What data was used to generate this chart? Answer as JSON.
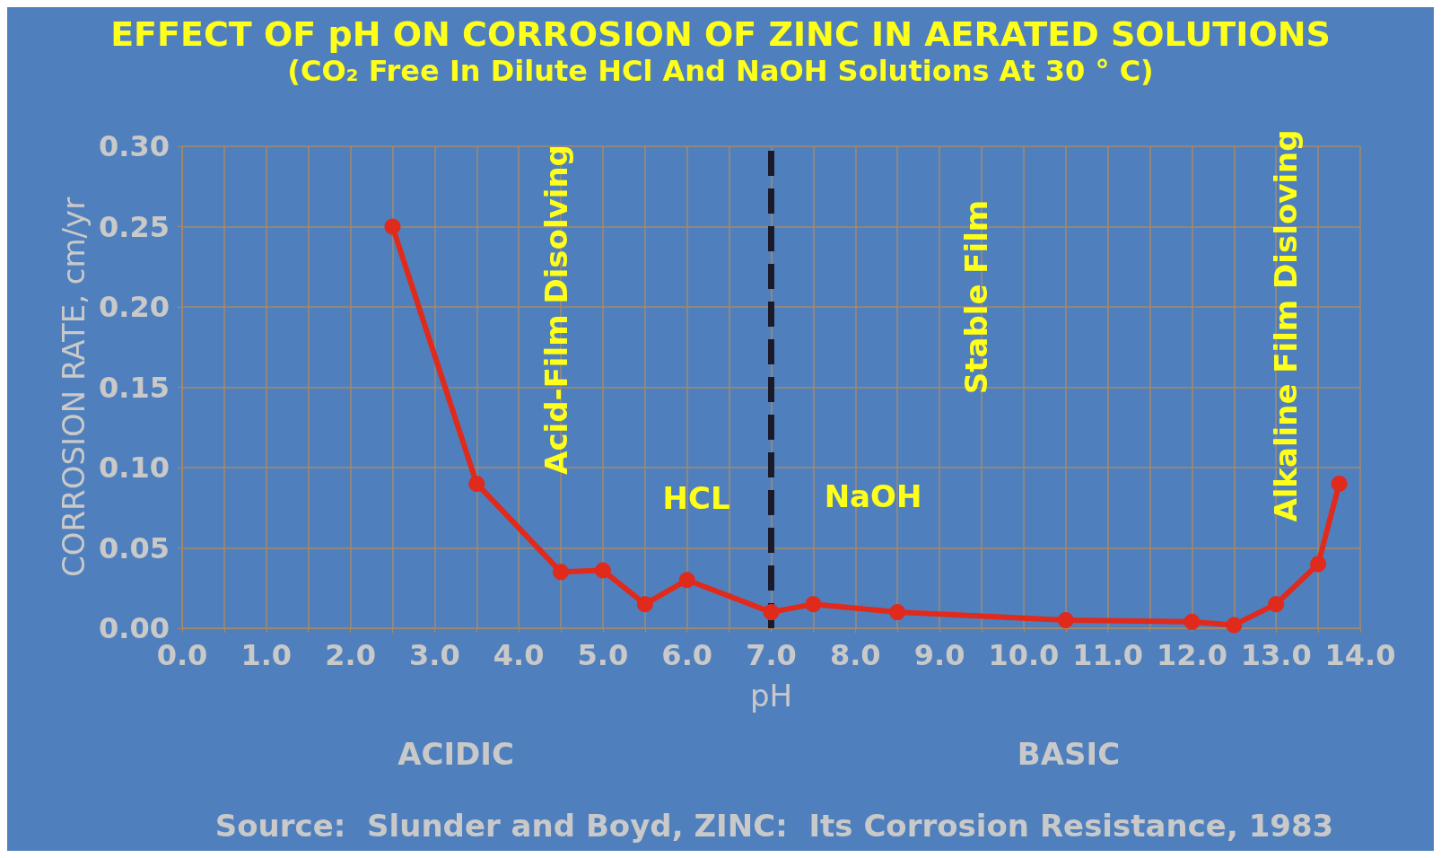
{
  "chart_data": {
    "type": "line",
    "title": "EFFECT OF pH ON CORROSION OF ZINC IN AERATED SOLUTIONS",
    "subtitle": "(CO₂ Free In Dilute HCl And NaOH Solutions At 30 ° C)",
    "xlabel": "pH",
    "ylabel": "CORROSION RATE, cm/yr",
    "x": [
      2.5,
      3.5,
      4.5,
      5.0,
      5.5,
      6.0,
      7.0,
      7.5,
      8.5,
      10.5,
      12.0,
      12.5,
      13.0,
      13.5,
      13.75
    ],
    "series": [
      {
        "color": "#e02a1c",
        "values": [
          0.25,
          0.09,
          0.035,
          0.036,
          0.015,
          0.03,
          0.01,
          0.015,
          0.01,
          0.005,
          0.004,
          0.002,
          0.015,
          0.04,
          0.09
        ]
      }
    ],
    "xlim": [
      0,
      14
    ],
    "xticks": [
      {
        "value": 0,
        "label": "0.0"
      },
      {
        "value": 0.5,
        "label": null
      },
      {
        "value": 1,
        "label": "1.0"
      },
      {
        "value": 1.5,
        "label": null
      },
      {
        "value": 2,
        "label": "2.0"
      },
      {
        "value": 2.5,
        "label": null
      },
      {
        "value": 3,
        "label": "3.0"
      },
      {
        "value": 3.5,
        "label": null
      },
      {
        "value": 4,
        "label": "4.0"
      },
      {
        "value": 4.5,
        "label": null
      },
      {
        "value": 5,
        "label": "5.0"
      },
      {
        "value": 5.5,
        "label": null
      },
      {
        "value": 6,
        "label": "6.0"
      },
      {
        "value": 6.5,
        "label": null
      },
      {
        "value": 7,
        "label": "7.0"
      },
      {
        "value": 7.5,
        "label": null
      },
      {
        "value": 8,
        "label": "8.0"
      },
      {
        "value": 8.5,
        "label": null
      },
      {
        "value": 9,
        "label": "9.0"
      },
      {
        "value": 9.5,
        "label": null
      },
      {
        "value": 10,
        "label": "10.0"
      },
      {
        "value": 10.5,
        "label": null
      },
      {
        "value": 11,
        "label": "11.0"
      },
      {
        "value": 11.5,
        "label": null
      },
      {
        "value": 12,
        "label": "12.0"
      },
      {
        "value": 12.5,
        "label": null
      },
      {
        "value": 13,
        "label": "13.0"
      },
      {
        "value": 13.5,
        "label": null
      },
      {
        "value": 14,
        "label": "14.0"
      }
    ],
    "ylim": [
      0,
      0.3
    ],
    "yticks": [
      {
        "value": 0,
        "label": "0.00"
      },
      {
        "value": 0.05,
        "label": "0.05"
      },
      {
        "value": 0.1,
        "label": "0.10"
      },
      {
        "value": 0.15,
        "label": "0.15"
      },
      {
        "value": 0.2,
        "label": "0.20"
      },
      {
        "value": 0.25,
        "label": "0.25"
      },
      {
        "value": 0.3,
        "label": "0.30"
      }
    ],
    "grid": true,
    "marker": "circle",
    "line_style": "solid",
    "ref_lines": [
      {
        "axis": "x",
        "value": 7,
        "label": null,
        "color": "#1a1a2a",
        "line_style": "dashed"
      }
    ],
    "annotations": [
      "Acid-Film Disolving",
      "HCL",
      "NaOH",
      "Stable Film",
      "Alkaline Film Disloving",
      "ACIDIC",
      "BASIC",
      "Source:  Slunder and Boyd, ZINC:  Its Corrosion Resistance, 1983"
    ]
  }
}
